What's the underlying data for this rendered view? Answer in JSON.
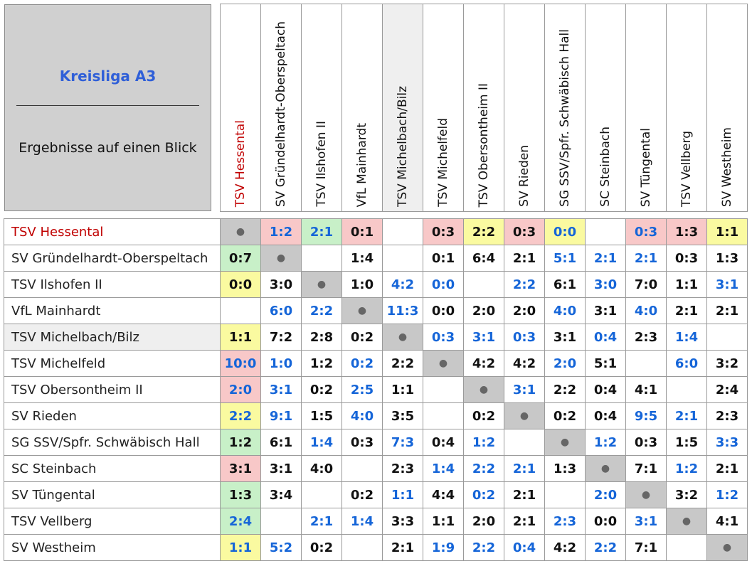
{
  "title": {
    "league": "Kreisliga A3",
    "separator": "________________________",
    "subtitle": "Ergebnisse auf einen Blick"
  },
  "colors": {
    "highlight_team": "#c00000",
    "blue_result": "#1565d8",
    "loss_bg": "#f8c8c8",
    "win_bg": "#c8f0c8",
    "draw_bg": "#fafaa0",
    "self_bg": "#c8c8c8"
  },
  "teams": [
    "TSV Hessental",
    "SV Gründelhardt-Oberspeltach",
    "TSV Ilshofen II",
    "VfL Mainhardt",
    "TSV Michelbach/Bilz",
    "TSV Michelfeld",
    "TSV Obersontheim II",
    "SV Rieden",
    "SG SSV/Spfr. Schwäbisch Hall",
    "SC Steinbach",
    "SV Tüngental",
    "TSV Vellberg",
    "SV Westheim"
  ],
  "self_marker": "●",
  "matrix": [
    [
      {
        "v": "●",
        "t": "self"
      },
      {
        "v": "1:2",
        "b": 1,
        "bg": "red"
      },
      {
        "v": "2:1",
        "b": 1,
        "bg": "green"
      },
      {
        "v": "0:1",
        "bg": "red"
      },
      {
        "v": ""
      },
      {
        "v": "0:3",
        "bg": "red"
      },
      {
        "v": "2:2",
        "bg": "yellow"
      },
      {
        "v": "0:3",
        "bg": "red"
      },
      {
        "v": "0:0",
        "b": 1,
        "bg": "yellow"
      },
      {
        "v": ""
      },
      {
        "v": "0:3",
        "b": 1,
        "bg": "red"
      },
      {
        "v": "1:3",
        "bg": "red"
      },
      {
        "v": "1:1",
        "bg": "yellow"
      }
    ],
    [
      {
        "v": "0:7",
        "bg": "green"
      },
      {
        "v": "●",
        "t": "self"
      },
      {
        "v": ""
      },
      {
        "v": "1:4"
      },
      {
        "v": ""
      },
      {
        "v": "0:1"
      },
      {
        "v": "6:4"
      },
      {
        "v": "2:1"
      },
      {
        "v": "5:1",
        "b": 1
      },
      {
        "v": "2:1",
        "b": 1
      },
      {
        "v": "2:1",
        "b": 1
      },
      {
        "v": "0:3"
      },
      {
        "v": "1:3"
      }
    ],
    [
      {
        "v": "0:0",
        "bg": "yellow"
      },
      {
        "v": "3:0"
      },
      {
        "v": "●",
        "t": "self"
      },
      {
        "v": "1:0"
      },
      {
        "v": "4:2",
        "b": 1
      },
      {
        "v": "0:0",
        "b": 1
      },
      {
        "v": ""
      },
      {
        "v": "2:2",
        "b": 1
      },
      {
        "v": "6:1"
      },
      {
        "v": "3:0",
        "b": 1
      },
      {
        "v": "7:0"
      },
      {
        "v": "1:1"
      },
      {
        "v": "3:1",
        "b": 1
      }
    ],
    [
      {
        "v": ""
      },
      {
        "v": "6:0",
        "b": 1
      },
      {
        "v": "2:2",
        "b": 1
      },
      {
        "v": "●",
        "t": "self"
      },
      {
        "v": "11:3",
        "b": 1
      },
      {
        "v": "0:0"
      },
      {
        "v": "2:0"
      },
      {
        "v": "2:0"
      },
      {
        "v": "4:0",
        "b": 1
      },
      {
        "v": "3:1"
      },
      {
        "v": "4:0",
        "b": 1
      },
      {
        "v": "2:1"
      },
      {
        "v": "2:1"
      }
    ],
    [
      {
        "v": "1:1",
        "bg": "yellow"
      },
      {
        "v": "7:2"
      },
      {
        "v": "2:8"
      },
      {
        "v": "0:2"
      },
      {
        "v": "●",
        "t": "self"
      },
      {
        "v": "0:3",
        "b": 1
      },
      {
        "v": "3:1",
        "b": 1
      },
      {
        "v": "0:3",
        "b": 1
      },
      {
        "v": "3:1"
      },
      {
        "v": "0:4",
        "b": 1
      },
      {
        "v": "2:3"
      },
      {
        "v": "1:4",
        "b": 1
      },
      {
        "v": ""
      }
    ],
    [
      {
        "v": "10:0",
        "b": 1,
        "bg": "red"
      },
      {
        "v": "1:0",
        "b": 1
      },
      {
        "v": "1:2"
      },
      {
        "v": "0:2",
        "b": 1
      },
      {
        "v": "2:2"
      },
      {
        "v": "●",
        "t": "self"
      },
      {
        "v": "4:2"
      },
      {
        "v": "4:2"
      },
      {
        "v": "2:0",
        "b": 1
      },
      {
        "v": "5:1"
      },
      {
        "v": ""
      },
      {
        "v": "6:0",
        "b": 1
      },
      {
        "v": "3:2"
      }
    ],
    [
      {
        "v": "2:0",
        "b": 1,
        "bg": "red"
      },
      {
        "v": "3:1",
        "b": 1
      },
      {
        "v": "0:2"
      },
      {
        "v": "2:5",
        "b": 1
      },
      {
        "v": "1:1"
      },
      {
        "v": ""
      },
      {
        "v": "●",
        "t": "self"
      },
      {
        "v": "3:1",
        "b": 1
      },
      {
        "v": "2:2"
      },
      {
        "v": "0:4"
      },
      {
        "v": "4:1"
      },
      {
        "v": ""
      },
      {
        "v": "2:4"
      }
    ],
    [
      {
        "v": "2:2",
        "b": 1,
        "bg": "yellow"
      },
      {
        "v": "9:1",
        "b": 1
      },
      {
        "v": "1:5"
      },
      {
        "v": "4:0",
        "b": 1
      },
      {
        "v": "3:5"
      },
      {
        "v": ""
      },
      {
        "v": "0:2"
      },
      {
        "v": "●",
        "t": "self"
      },
      {
        "v": "0:2"
      },
      {
        "v": "0:4"
      },
      {
        "v": "9:5",
        "b": 1
      },
      {
        "v": "2:1",
        "b": 1
      },
      {
        "v": "2:3"
      }
    ],
    [
      {
        "v": "1:2",
        "bg": "green"
      },
      {
        "v": "6:1"
      },
      {
        "v": "1:4",
        "b": 1
      },
      {
        "v": "0:3"
      },
      {
        "v": "7:3",
        "b": 1
      },
      {
        "v": "0:4"
      },
      {
        "v": "1:2",
        "b": 1
      },
      {
        "v": ""
      },
      {
        "v": "●",
        "t": "self"
      },
      {
        "v": "1:2",
        "b": 1
      },
      {
        "v": "0:3"
      },
      {
        "v": "1:5"
      },
      {
        "v": "3:3",
        "b": 1
      }
    ],
    [
      {
        "v": "3:1",
        "bg": "red"
      },
      {
        "v": "3:1"
      },
      {
        "v": "4:0"
      },
      {
        "v": ""
      },
      {
        "v": "2:3"
      },
      {
        "v": "1:4",
        "b": 1
      },
      {
        "v": "2:2",
        "b": 1
      },
      {
        "v": "2:1",
        "b": 1
      },
      {
        "v": "1:3"
      },
      {
        "v": "●",
        "t": "self"
      },
      {
        "v": "7:1"
      },
      {
        "v": "1:2",
        "b": 1
      },
      {
        "v": "2:1"
      }
    ],
    [
      {
        "v": "1:3",
        "bg": "green"
      },
      {
        "v": "3:4"
      },
      {
        "v": ""
      },
      {
        "v": "0:2"
      },
      {
        "v": "1:1",
        "b": 1
      },
      {
        "v": "4:4"
      },
      {
        "v": "0:2",
        "b": 1
      },
      {
        "v": "2:1"
      },
      {
        "v": ""
      },
      {
        "v": "2:0",
        "b": 1
      },
      {
        "v": "●",
        "t": "self"
      },
      {
        "v": "3:2"
      },
      {
        "v": "1:2",
        "b": 1
      }
    ],
    [
      {
        "v": "2:4",
        "b": 1,
        "bg": "green"
      },
      {
        "v": ""
      },
      {
        "v": "2:1",
        "b": 1
      },
      {
        "v": "1:4",
        "b": 1
      },
      {
        "v": "3:3"
      },
      {
        "v": "1:1"
      },
      {
        "v": "2:0"
      },
      {
        "v": "2:1"
      },
      {
        "v": "2:3",
        "b": 1
      },
      {
        "v": "0:0"
      },
      {
        "v": "3:1",
        "b": 1
      },
      {
        "v": "●",
        "t": "self"
      },
      {
        "v": "4:1"
      }
    ],
    [
      {
        "v": "1:1",
        "b": 1,
        "bg": "yellow"
      },
      {
        "v": "5:2",
        "b": 1
      },
      {
        "v": "0:2"
      },
      {
        "v": ""
      },
      {
        "v": "2:1"
      },
      {
        "v": "1:9",
        "b": 1
      },
      {
        "v": "2:2",
        "b": 1
      },
      {
        "v": "0:4",
        "b": 1
      },
      {
        "v": "4:2"
      },
      {
        "v": "2:2",
        "b": 1
      },
      {
        "v": "7:1"
      },
      {
        "v": ""
      },
      {
        "v": "●",
        "t": "self"
      }
    ]
  ]
}
